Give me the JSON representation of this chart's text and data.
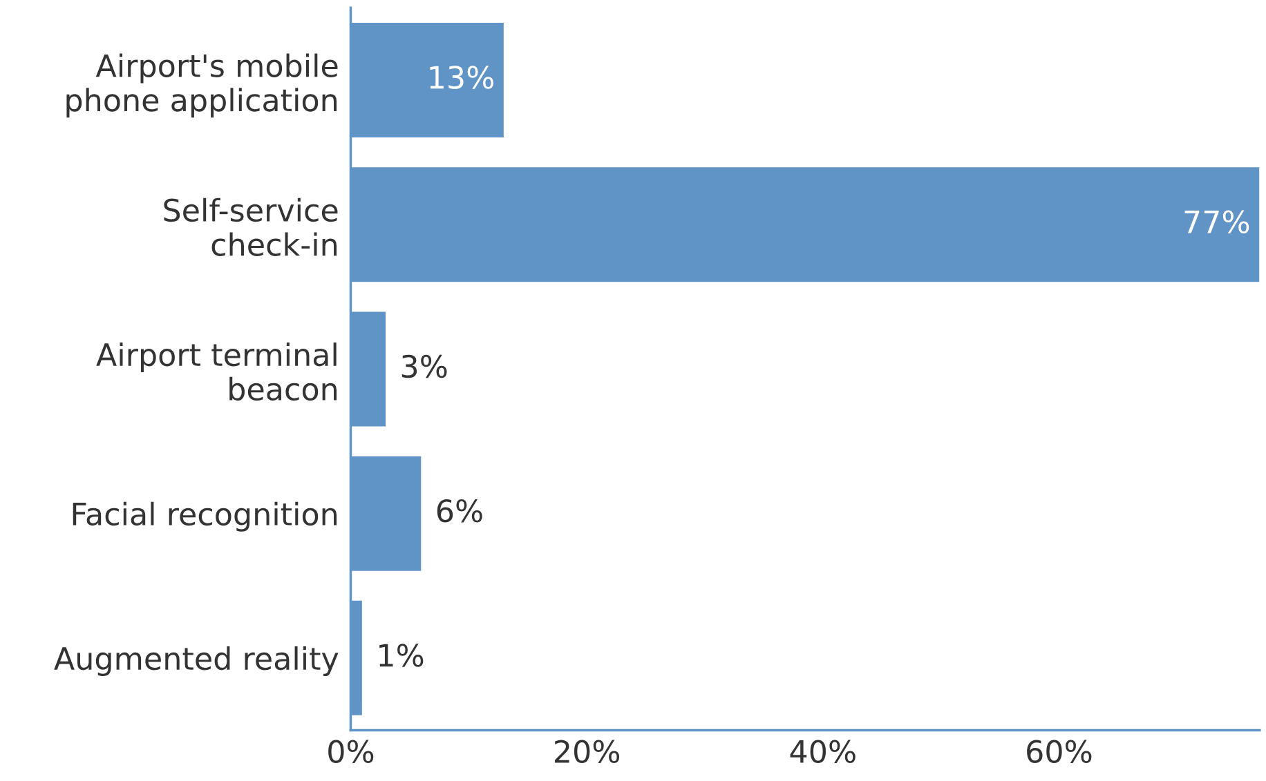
{
  "chart_data": {
    "type": "bar",
    "orientation": "horizontal",
    "categories": [
      "Airport's mobile\nphone application",
      "Self-service\ncheck-in",
      "Airport terminal\nbeacon",
      "Facial recognition",
      "Augmented reality"
    ],
    "values": [
      13,
      77,
      3,
      6,
      1
    ],
    "color": "#6194c6",
    "xlim": [
      0,
      77
    ],
    "xticks": [
      {
        "value": 0,
        "label": "0%"
      },
      {
        "value": 20,
        "label": "20%"
      },
      {
        "value": 40,
        "label": "40%"
      },
      {
        "value": 60,
        "label": "60%"
      }
    ],
    "value_labels": [
      "13%",
      "77%",
      "3%",
      "6%",
      "1%"
    ],
    "grid": false,
    "legend": false
  }
}
